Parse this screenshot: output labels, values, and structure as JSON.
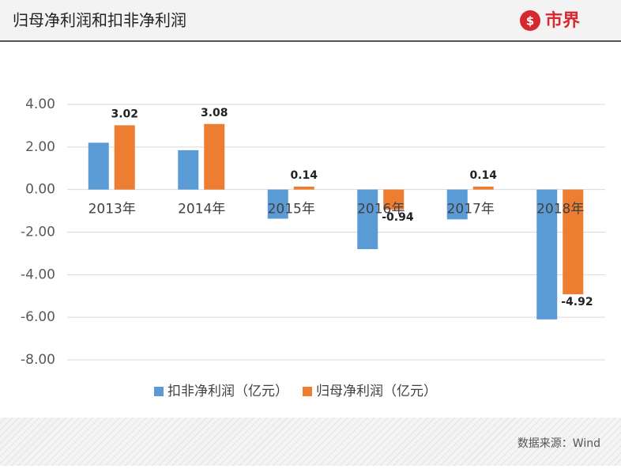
{
  "chart_data": {
    "type": "bar",
    "title": "归母净利润和扣非净利润",
    "logo_text": "市界",
    "source": "数据来源：Wind",
    "categories": [
      "2013年",
      "2014年",
      "2015年",
      "2016年",
      "2017年",
      "2018年"
    ],
    "series": [
      {
        "name": "扣非净利润（亿元）",
        "color": "#5b9bd5",
        "values": [
          2.2,
          1.85,
          -1.37,
          -2.8,
          -1.4,
          -6.1
        ]
      },
      {
        "name": "归母净利润（亿元）",
        "color": "#ed7d31",
        "values": [
          3.02,
          3.08,
          0.14,
          -0.94,
          0.14,
          -4.92
        ],
        "show_labels": true
      }
    ],
    "ylim": [
      -8,
      4
    ],
    "yticks": [
      {
        "value": -8,
        "label": "-8.00"
      },
      {
        "value": -6,
        "label": "-6.00"
      },
      {
        "value": -4,
        "label": "-4.00"
      },
      {
        "value": -2,
        "label": "-2.00"
      },
      {
        "value": 0,
        "label": "0.00"
      },
      {
        "value": 2,
        "label": "2.00"
      },
      {
        "value": 4,
        "label": "4.00"
      }
    ],
    "grid": true,
    "legend": "bottom"
  }
}
